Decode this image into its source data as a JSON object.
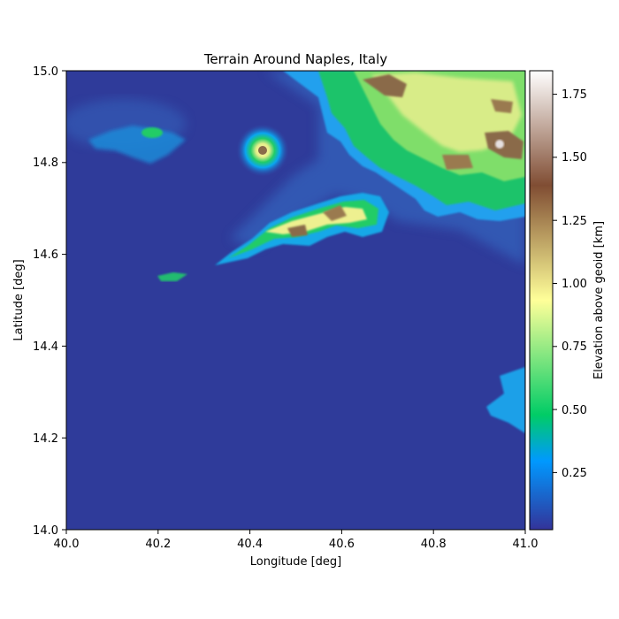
{
  "chart_data": {
    "type": "heatmap",
    "title": "Terrain Around Naples, Italy",
    "xlabel": "Longitude [deg]",
    "ylabel": "Latitude [deg]",
    "xlim": [
      40.0,
      41.0
    ],
    "ylim": [
      14.0,
      15.0
    ],
    "x_ticks": [
      "40.0",
      "40.2",
      "40.4",
      "40.6",
      "40.8",
      "41.0"
    ],
    "y_ticks": [
      "14.0",
      "14.2",
      "14.4",
      "14.6",
      "14.8",
      "15.0"
    ],
    "colorbar": {
      "label": "Elevation above geoid [km]",
      "range": [
        0.02,
        1.84
      ],
      "ticks": [
        "0.25",
        "0.50",
        "0.75",
        "1.00",
        "1.25",
        "1.50",
        "1.75"
      ],
      "colormap": "terrain",
      "colors": [
        "#333399",
        "#0099ff",
        "#00cc66",
        "#ffff99",
        "#804d33",
        "#ffffff"
      ]
    },
    "grid": false
  }
}
